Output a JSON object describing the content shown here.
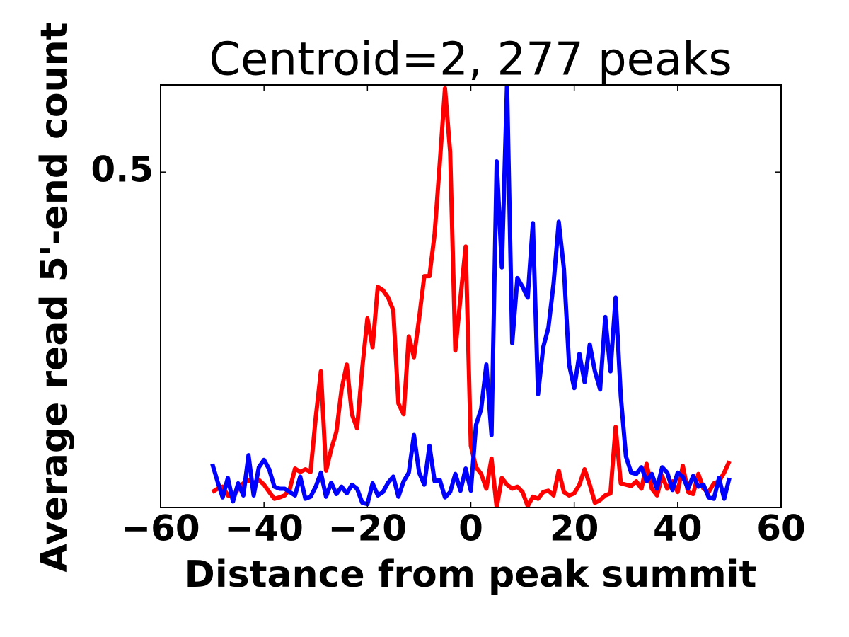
{
  "chart_data": {
    "type": "line",
    "title": "Centroid=2, 277 peaks",
    "x_label": "Distance from peak summit",
    "y_label": "Average read 5'-end count",
    "x": [
      -50,
      -49,
      -48,
      -47,
      -46,
      -45,
      -44,
      -43,
      -42,
      -41,
      -40,
      -39,
      -38,
      -37,
      -36,
      -35,
      -34,
      -33,
      -32,
      -31,
      -30,
      -29,
      -28,
      -27,
      -26,
      -25,
      -24,
      -23,
      -22,
      -21,
      -20,
      -19,
      -18,
      -17,
      -16,
      -15,
      -14,
      -13,
      -12,
      -11,
      -10,
      -9,
      -8,
      -7,
      -6,
      -5,
      -4,
      -3,
      -2,
      -1,
      0,
      1,
      2,
      3,
      4,
      5,
      6,
      7,
      8,
      9,
      10,
      11,
      12,
      13,
      14,
      15,
      16,
      17,
      18,
      19,
      20,
      21,
      22,
      23,
      24,
      25,
      26,
      27,
      28,
      29,
      30,
      31,
      32,
      33,
      34,
      35,
      36,
      37,
      38,
      39,
      40,
      41,
      42,
      43,
      44,
      45,
      46,
      47,
      48,
      49,
      50
    ],
    "series": [
      {
        "name": "red",
        "color": "#ff0000",
        "values": [
          0.023,
          0.028,
          0.031,
          0.018,
          0.016,
          0.028,
          0.036,
          0.041,
          0.037,
          0.041,
          0.034,
          0.023,
          0.013,
          0.015,
          0.018,
          0.028,
          0.058,
          0.053,
          0.057,
          0.053,
          0.134,
          0.203,
          0.055,
          0.087,
          0.113,
          0.176,
          0.213,
          0.139,
          0.118,
          0.208,
          0.282,
          0.239,
          0.329,
          0.324,
          0.313,
          0.294,
          0.155,
          0.139,
          0.255,
          0.224,
          0.282,
          0.345,
          0.345,
          0.408,
          0.514,
          0.625,
          0.53,
          0.234,
          0.313,
          0.389,
          0.092,
          0.06,
          0.05,
          0.028,
          0.073,
          0,
          0.044,
          0.034,
          0.028,
          0.031,
          0.023,
          0.002,
          0.016,
          0.013,
          0.023,
          0.025,
          0.018,
          0.055,
          0.023,
          0.018,
          0.021,
          0.034,
          0.057,
          0.034,
          0.007,
          0.011,
          0.018,
          0.021,
          0.12,
          0.036,
          0.034,
          0.032,
          0.039,
          0.028,
          0.065,
          0.028,
          0.018,
          0.047,
          0.028,
          0.039,
          0.023,
          0.062,
          0.023,
          0.02,
          0.05,
          0.028,
          0.023,
          0.036,
          0.039,
          0.052,
          0.069
        ]
      },
      {
        "name": "blue",
        "color": "#0000ff",
        "values": [
          0.065,
          0.039,
          0.015,
          0.044,
          0.009,
          0.036,
          0.018,
          0.078,
          0.018,
          0.06,
          0.071,
          0.057,
          0.031,
          0.028,
          0.028,
          0.023,
          0.018,
          0.046,
          0.013,
          0.016,
          0.031,
          0.052,
          0.016,
          0.037,
          0.02,
          0.031,
          0.021,
          0.034,
          0.028,
          0.007,
          0.005,
          0.036,
          0.018,
          0.023,
          0.037,
          0.046,
          0.016,
          0.039,
          0.052,
          0.108,
          0.052,
          0.034,
          0.092,
          0.039,
          0.041,
          0.015,
          0.023,
          0.05,
          0.025,
          0.058,
          0.025,
          0.123,
          0.147,
          0.213,
          0.108,
          0.516,
          0.358,
          0.632,
          0.245,
          0.342,
          0.329,
          0.313,
          0.424,
          0.169,
          0.239,
          0.268,
          0.334,
          0.426,
          0.356,
          0.213,
          0.178,
          0.229,
          0.187,
          0.243,
          0.203,
          0.176,
          0.284,
          0.203,
          0.313,
          0.166,
          0.076,
          0.052,
          0.05,
          0.06,
          0.039,
          0.05,
          0.028,
          0.06,
          0.052,
          0.026,
          0.052,
          0.046,
          0.028,
          0.047,
          0.031,
          0.034,
          0.015,
          0.013,
          0.044,
          0.013,
          0.044
        ]
      }
    ],
    "xlim": [
      -60,
      60
    ],
    "xticks": [
      {
        "value": -60,
        "label": "−60"
      },
      {
        "value": -40,
        "label": "−40"
      },
      {
        "value": -20,
        "label": "−20"
      },
      0,
      20,
      40,
      60
    ],
    "ylim": [
      0,
      0.63
    ],
    "yticks": [
      0.5
    ],
    "line_width": 6
  }
}
